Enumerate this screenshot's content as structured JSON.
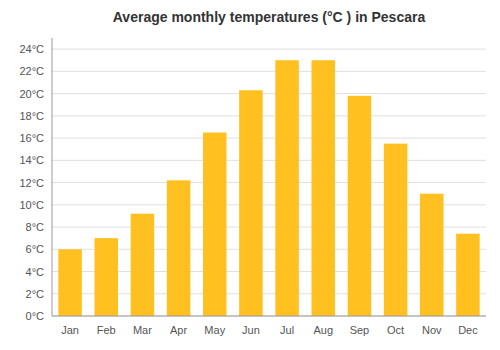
{
  "chart_data": {
    "type": "bar",
    "title": "Average monthly temperatures (°C ) in Pescara",
    "categories": [
      "Jan",
      "Feb",
      "Mar",
      "Apr",
      "May",
      "Jun",
      "Jul",
      "Aug",
      "Sep",
      "Oct",
      "Nov",
      "Dec"
    ],
    "values": [
      6,
      7,
      9.2,
      12.2,
      16.5,
      20.3,
      23,
      23,
      19.8,
      15.5,
      11,
      7.4
    ],
    "color": "#FFC020",
    "ylim": [
      0,
      25
    ],
    "yticks": [
      {
        "value": 0,
        "label": "0°C"
      },
      {
        "value": 2,
        "label": "2°C"
      },
      {
        "value": 4,
        "label": "4°C"
      },
      {
        "value": 6,
        "label": "6°C"
      },
      {
        "value": 8,
        "label": "8°C"
      },
      {
        "value": 10,
        "label": "10°C"
      },
      {
        "value": 12,
        "label": "12°C"
      },
      {
        "value": 14,
        "label": "14°C"
      },
      {
        "value": 16,
        "label": "16°C"
      },
      {
        "value": 18,
        "label": "18°C"
      },
      {
        "value": 20,
        "label": "20°C"
      },
      {
        "value": 22,
        "label": "22°C"
      },
      {
        "value": 24,
        "label": "24°C"
      }
    ],
    "grid": true
  }
}
